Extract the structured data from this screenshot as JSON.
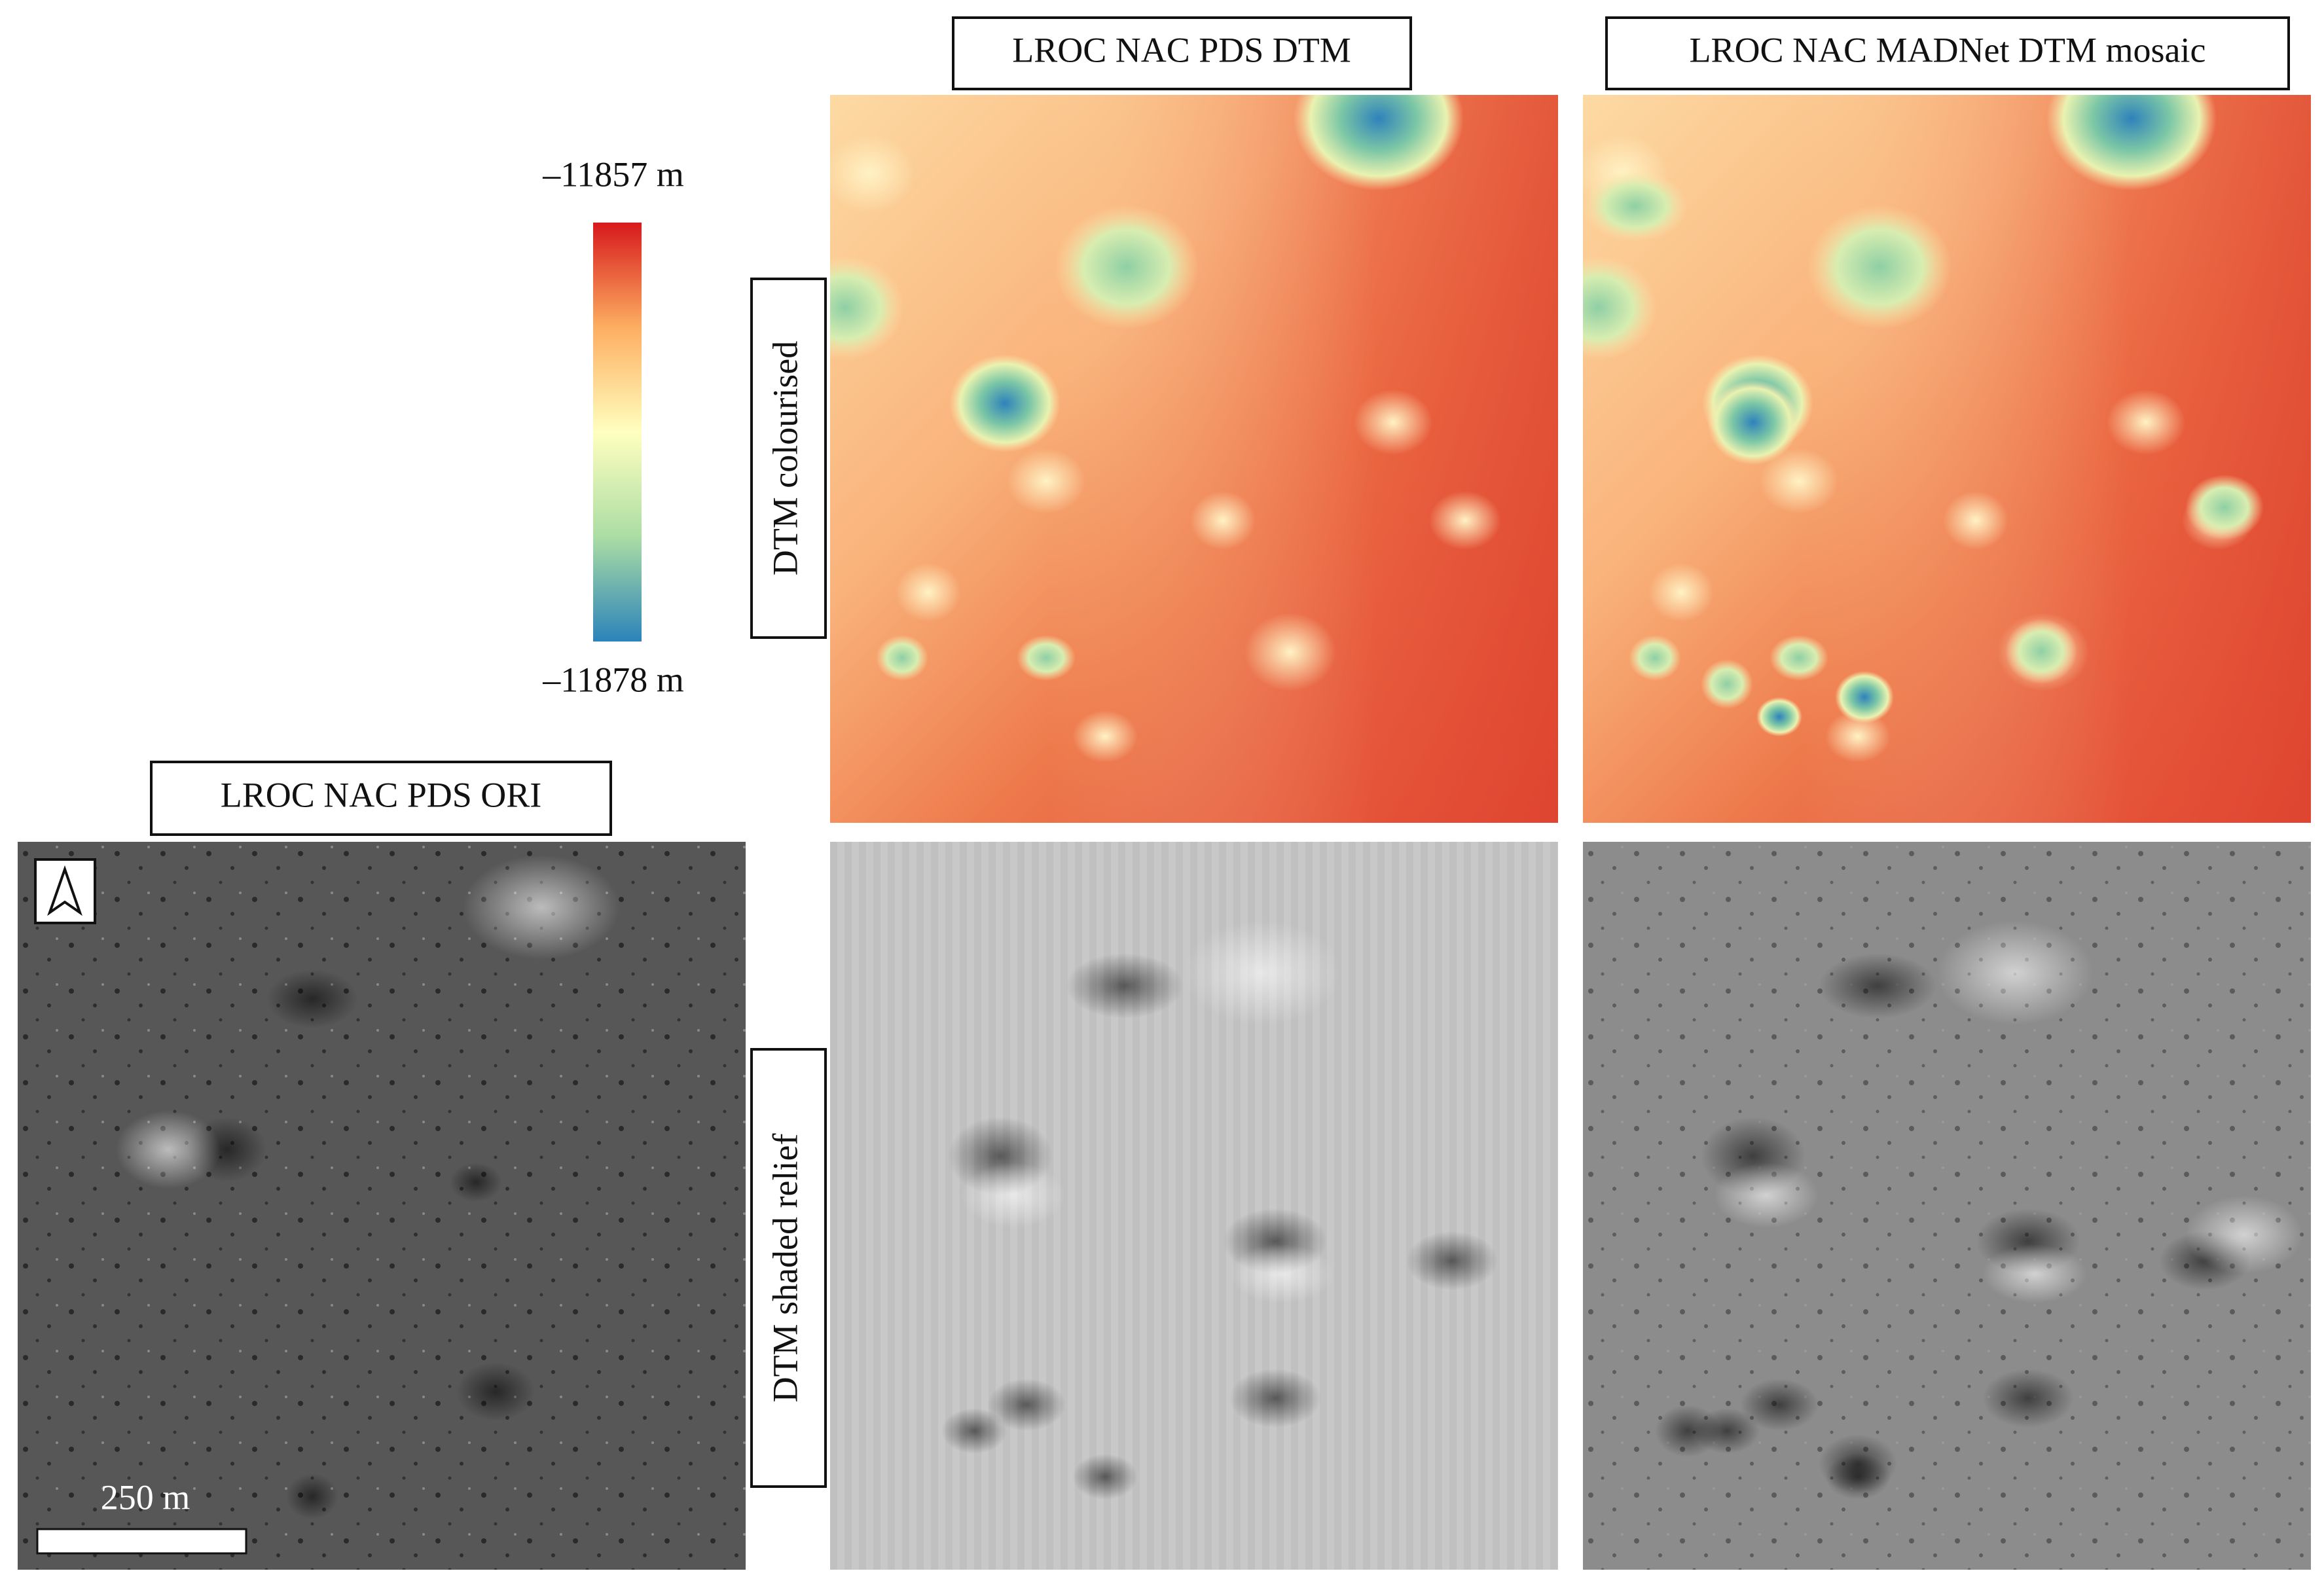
{
  "column_headers": [
    "LROC NAC PDS ORI",
    "LROC NAC PDS DTM",
    "LROC NAC MADNet DTM mosaic"
  ],
  "row_labels": [
    "DTM colourised",
    "DTM shaded relief"
  ],
  "colorbar": {
    "max_label": "–11857 m",
    "min_label": "–11878 m"
  },
  "scale_bar": "250 m"
}
